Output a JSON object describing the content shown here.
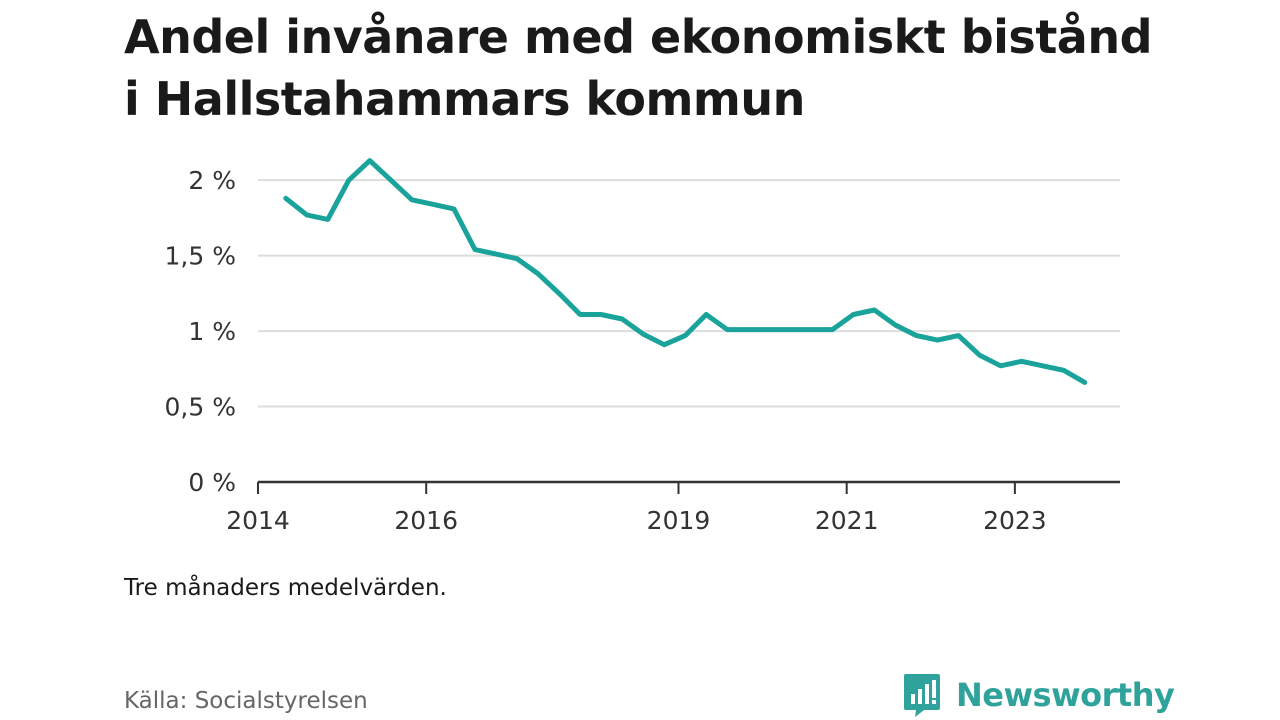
{
  "title": "Andel invånare med ekonomiskt bistånd i Hallstahammars kommun",
  "note": "Tre månaders medelvärden.",
  "source": "Källa: Socialstyrelsen",
  "brand": {
    "name": "Newsworthy",
    "icon": "newsworthy-logo-icon"
  },
  "colors": {
    "line": "#1aa39b",
    "grid": "#dddddd",
    "axis": "#333333",
    "brand": "#2fa39b"
  },
  "chart_data": {
    "type": "line",
    "title": "Andel invånare med ekonomiskt bistånd i Hallstahammars kommun",
    "xlabel": "",
    "ylabel": "",
    "ylim": [
      0,
      2.2
    ],
    "xlim": [
      2014.0,
      2024.25
    ],
    "grid": true,
    "y_ticks": [
      {
        "value": 0,
        "label": "0 %"
      },
      {
        "value": 0.5,
        "label": "0,5 %"
      },
      {
        "value": 1,
        "label": "1 %"
      },
      {
        "value": 1.5,
        "label": "1,5 %"
      },
      {
        "value": 2,
        "label": "2 %"
      }
    ],
    "x_ticks": [
      {
        "value": 2014,
        "label": "2014"
      },
      {
        "value": 2016,
        "label": "2016"
      },
      {
        "value": 2019,
        "label": "2019"
      },
      {
        "value": 2021,
        "label": "2021"
      },
      {
        "value": 2023,
        "label": "2023"
      }
    ],
    "series": [
      {
        "points": [
          [
            2014.33,
            1.88
          ],
          [
            2014.58,
            1.77
          ],
          [
            2014.83,
            1.74
          ],
          [
            2015.08,
            2.0
          ],
          [
            2015.33,
            2.13
          ],
          [
            2015.58,
            2.0
          ],
          [
            2015.83,
            1.87
          ],
          [
            2016.08,
            1.84
          ],
          [
            2016.33,
            1.81
          ],
          [
            2016.58,
            1.54
          ],
          [
            2016.83,
            1.51
          ],
          [
            2017.08,
            1.48
          ],
          [
            2017.33,
            1.38
          ],
          [
            2017.58,
            1.25
          ],
          [
            2017.83,
            1.11
          ],
          [
            2018.08,
            1.11
          ],
          [
            2018.33,
            1.08
          ],
          [
            2018.58,
            0.98
          ],
          [
            2018.83,
            0.91
          ],
          [
            2019.08,
            0.97
          ],
          [
            2019.33,
            1.11
          ],
          [
            2019.58,
            1.01
          ],
          [
            2019.83,
            1.01
          ],
          [
            2020.08,
            1.01
          ],
          [
            2020.33,
            1.01
          ],
          [
            2020.58,
            1.01
          ],
          [
            2020.83,
            1.01
          ],
          [
            2021.08,
            1.11
          ],
          [
            2021.33,
            1.14
          ],
          [
            2021.58,
            1.04
          ],
          [
            2021.83,
            0.97
          ],
          [
            2022.08,
            0.94
          ],
          [
            2022.33,
            0.97
          ],
          [
            2022.58,
            0.84
          ],
          [
            2022.83,
            0.77
          ],
          [
            2023.08,
            0.8
          ],
          [
            2023.33,
            0.77
          ],
          [
            2023.58,
            0.74
          ],
          [
            2023.83,
            0.66
          ]
        ]
      }
    ]
  }
}
